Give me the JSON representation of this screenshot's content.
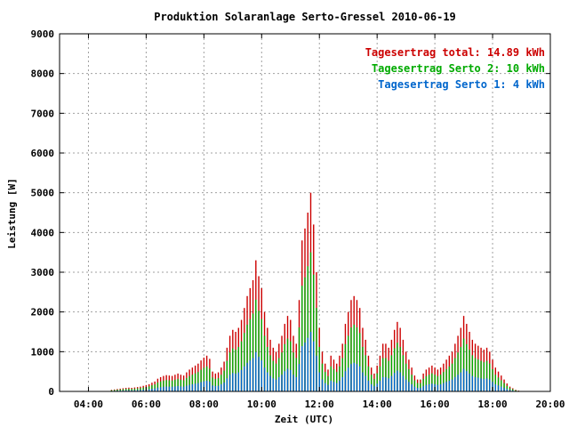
{
  "chart_data": {
    "type": "bar",
    "title": "Produktion Solaranlage Serto-Gressel 2010-06-19",
    "xlabel": "Zeit (UTC)",
    "ylabel": "Leistung [W]",
    "ylim": [
      0,
      9000
    ],
    "y_ticks": [
      0,
      1000,
      2000,
      3000,
      4000,
      5000,
      6000,
      7000,
      8000,
      9000
    ],
    "x_ticks": [
      "04:00",
      "06:00",
      "08:00",
      "10:00",
      "12:00",
      "14:00",
      "16:00",
      "18:00",
      "20:00"
    ],
    "x_range_hours": [
      3.0,
      20.0
    ],
    "grid": true,
    "legend_position": "top-right",
    "legend": [
      {
        "label": "Tagesertrag total: 14.89 kWh",
        "color": "#cc0000"
      },
      {
        "label": "Tagesertrag Serto 2: 10 kWh",
        "color": "#00aa00"
      },
      {
        "label": "Tagesertrag Serto 1: 4 kWh",
        "color": "#0066cc"
      }
    ],
    "series_colors": {
      "total": "#cc0000",
      "serto2": "#00aa00",
      "serto1": "#0066cc"
    },
    "interval_hours": 0.1,
    "first_hour": 4.8,
    "total": [
      40,
      50,
      60,
      70,
      80,
      90,
      95,
      90,
      100,
      110,
      120,
      140,
      160,
      180,
      220,
      250,
      320,
      360,
      390,
      410,
      400,
      390,
      420,
      450,
      420,
      400,
      480,
      550,
      600,
      650,
      700,
      780,
      850,
      900,
      820,
      500,
      450,
      480,
      600,
      750,
      1100,
      1400,
      1550,
      1500,
      1600,
      1800,
      2100,
      2400,
      2600,
      2800,
      3300,
      2900,
      2600,
      2000,
      1600,
      1300,
      1100,
      1000,
      1200,
      1400,
      1700,
      1900,
      1800,
      1400,
      1200,
      2300,
      3800,
      4100,
      4500,
      5000,
      4200,
      3000,
      1600,
      1000,
      700,
      550,
      900,
      800,
      700,
      900,
      1200,
      1700,
      2000,
      2300,
      2400,
      2300,
      2100,
      1600,
      1300,
      900,
      600,
      450,
      650,
      900,
      1200,
      1200,
      1100,
      1300,
      1550,
      1750,
      1600,
      1300,
      1000,
      800,
      600,
      400,
      300,
      300,
      450,
      550,
      600,
      650,
      600,
      550,
      600,
      700,
      800,
      900,
      1000,
      1200,
      1400,
      1600,
      1900,
      1700,
      1500,
      1300,
      1200,
      1150,
      1100,
      1050,
      1100,
      1000,
      800,
      600,
      500,
      400,
      300,
      200,
      120,
      80,
      40,
      20
    ],
    "serto2": [
      28,
      35,
      42,
      49,
      56,
      63,
      66,
      63,
      70,
      77,
      84,
      98,
      112,
      126,
      154,
      175,
      224,
      252,
      273,
      287,
      280,
      273,
      294,
      315,
      294,
      280,
      336,
      385,
      420,
      455,
      490,
      546,
      595,
      630,
      574,
      350,
      315,
      336,
      420,
      525,
      770,
      980,
      1085,
      1050,
      1120,
      1260,
      1470,
      1680,
      1820,
      1960,
      2310,
      2030,
      1820,
      1400,
      1120,
      910,
      770,
      700,
      840,
      980,
      1190,
      1330,
      1260,
      980,
      840,
      1610,
      2660,
      2870,
      3150,
      3500,
      2940,
      2100,
      1120,
      700,
      490,
      385,
      630,
      560,
      490,
      630,
      840,
      1190,
      1400,
      1610,
      1680,
      1610,
      1470,
      1120,
      910,
      630,
      420,
      315,
      455,
      630,
      840,
      840,
      770,
      910,
      1085,
      1225,
      1120,
      910,
      700,
      560,
      420,
      280,
      210,
      210,
      315,
      385,
      420,
      455,
      420,
      385,
      420,
      490,
      560,
      630,
      700,
      840,
      980,
      1120,
      1330,
      1190,
      1050,
      910,
      840,
      805,
      770,
      735,
      770,
      700,
      560,
      420,
      350,
      280,
      210,
      140,
      84,
      56,
      28,
      14
    ],
    "serto1": [
      12,
      15,
      18,
      21,
      24,
      27,
      29,
      27,
      30,
      33,
      36,
      42,
      48,
      54,
      66,
      75,
      96,
      108,
      117,
      123,
      120,
      117,
      126,
      135,
      126,
      120,
      144,
      165,
      180,
      195,
      210,
      234,
      255,
      270,
      246,
      150,
      135,
      144,
      180,
      225,
      330,
      420,
      465,
      450,
      480,
      540,
      630,
      720,
      780,
      840,
      990,
      870,
      780,
      600,
      480,
      390,
      330,
      300,
      360,
      420,
      510,
      570,
      540,
      420,
      360,
      690,
      1140,
      1230,
      1350,
      1500,
      1260,
      900,
      480,
      300,
      210,
      165,
      270,
      240,
      210,
      270,
      360,
      510,
      600,
      690,
      720,
      690,
      630,
      480,
      390,
      270,
      180,
      135,
      195,
      270,
      360,
      360,
      330,
      390,
      465,
      525,
      480,
      390,
      300,
      240,
      180,
      120,
      90,
      90,
      135,
      165,
      180,
      195,
      180,
      165,
      180,
      210,
      240,
      270,
      300,
      360,
      420,
      480,
      570,
      510,
      450,
      390,
      360,
      345,
      330,
      315,
      330,
      300,
      240,
      180,
      150,
      120,
      90,
      60,
      36,
      24,
      12,
      6
    ]
  }
}
